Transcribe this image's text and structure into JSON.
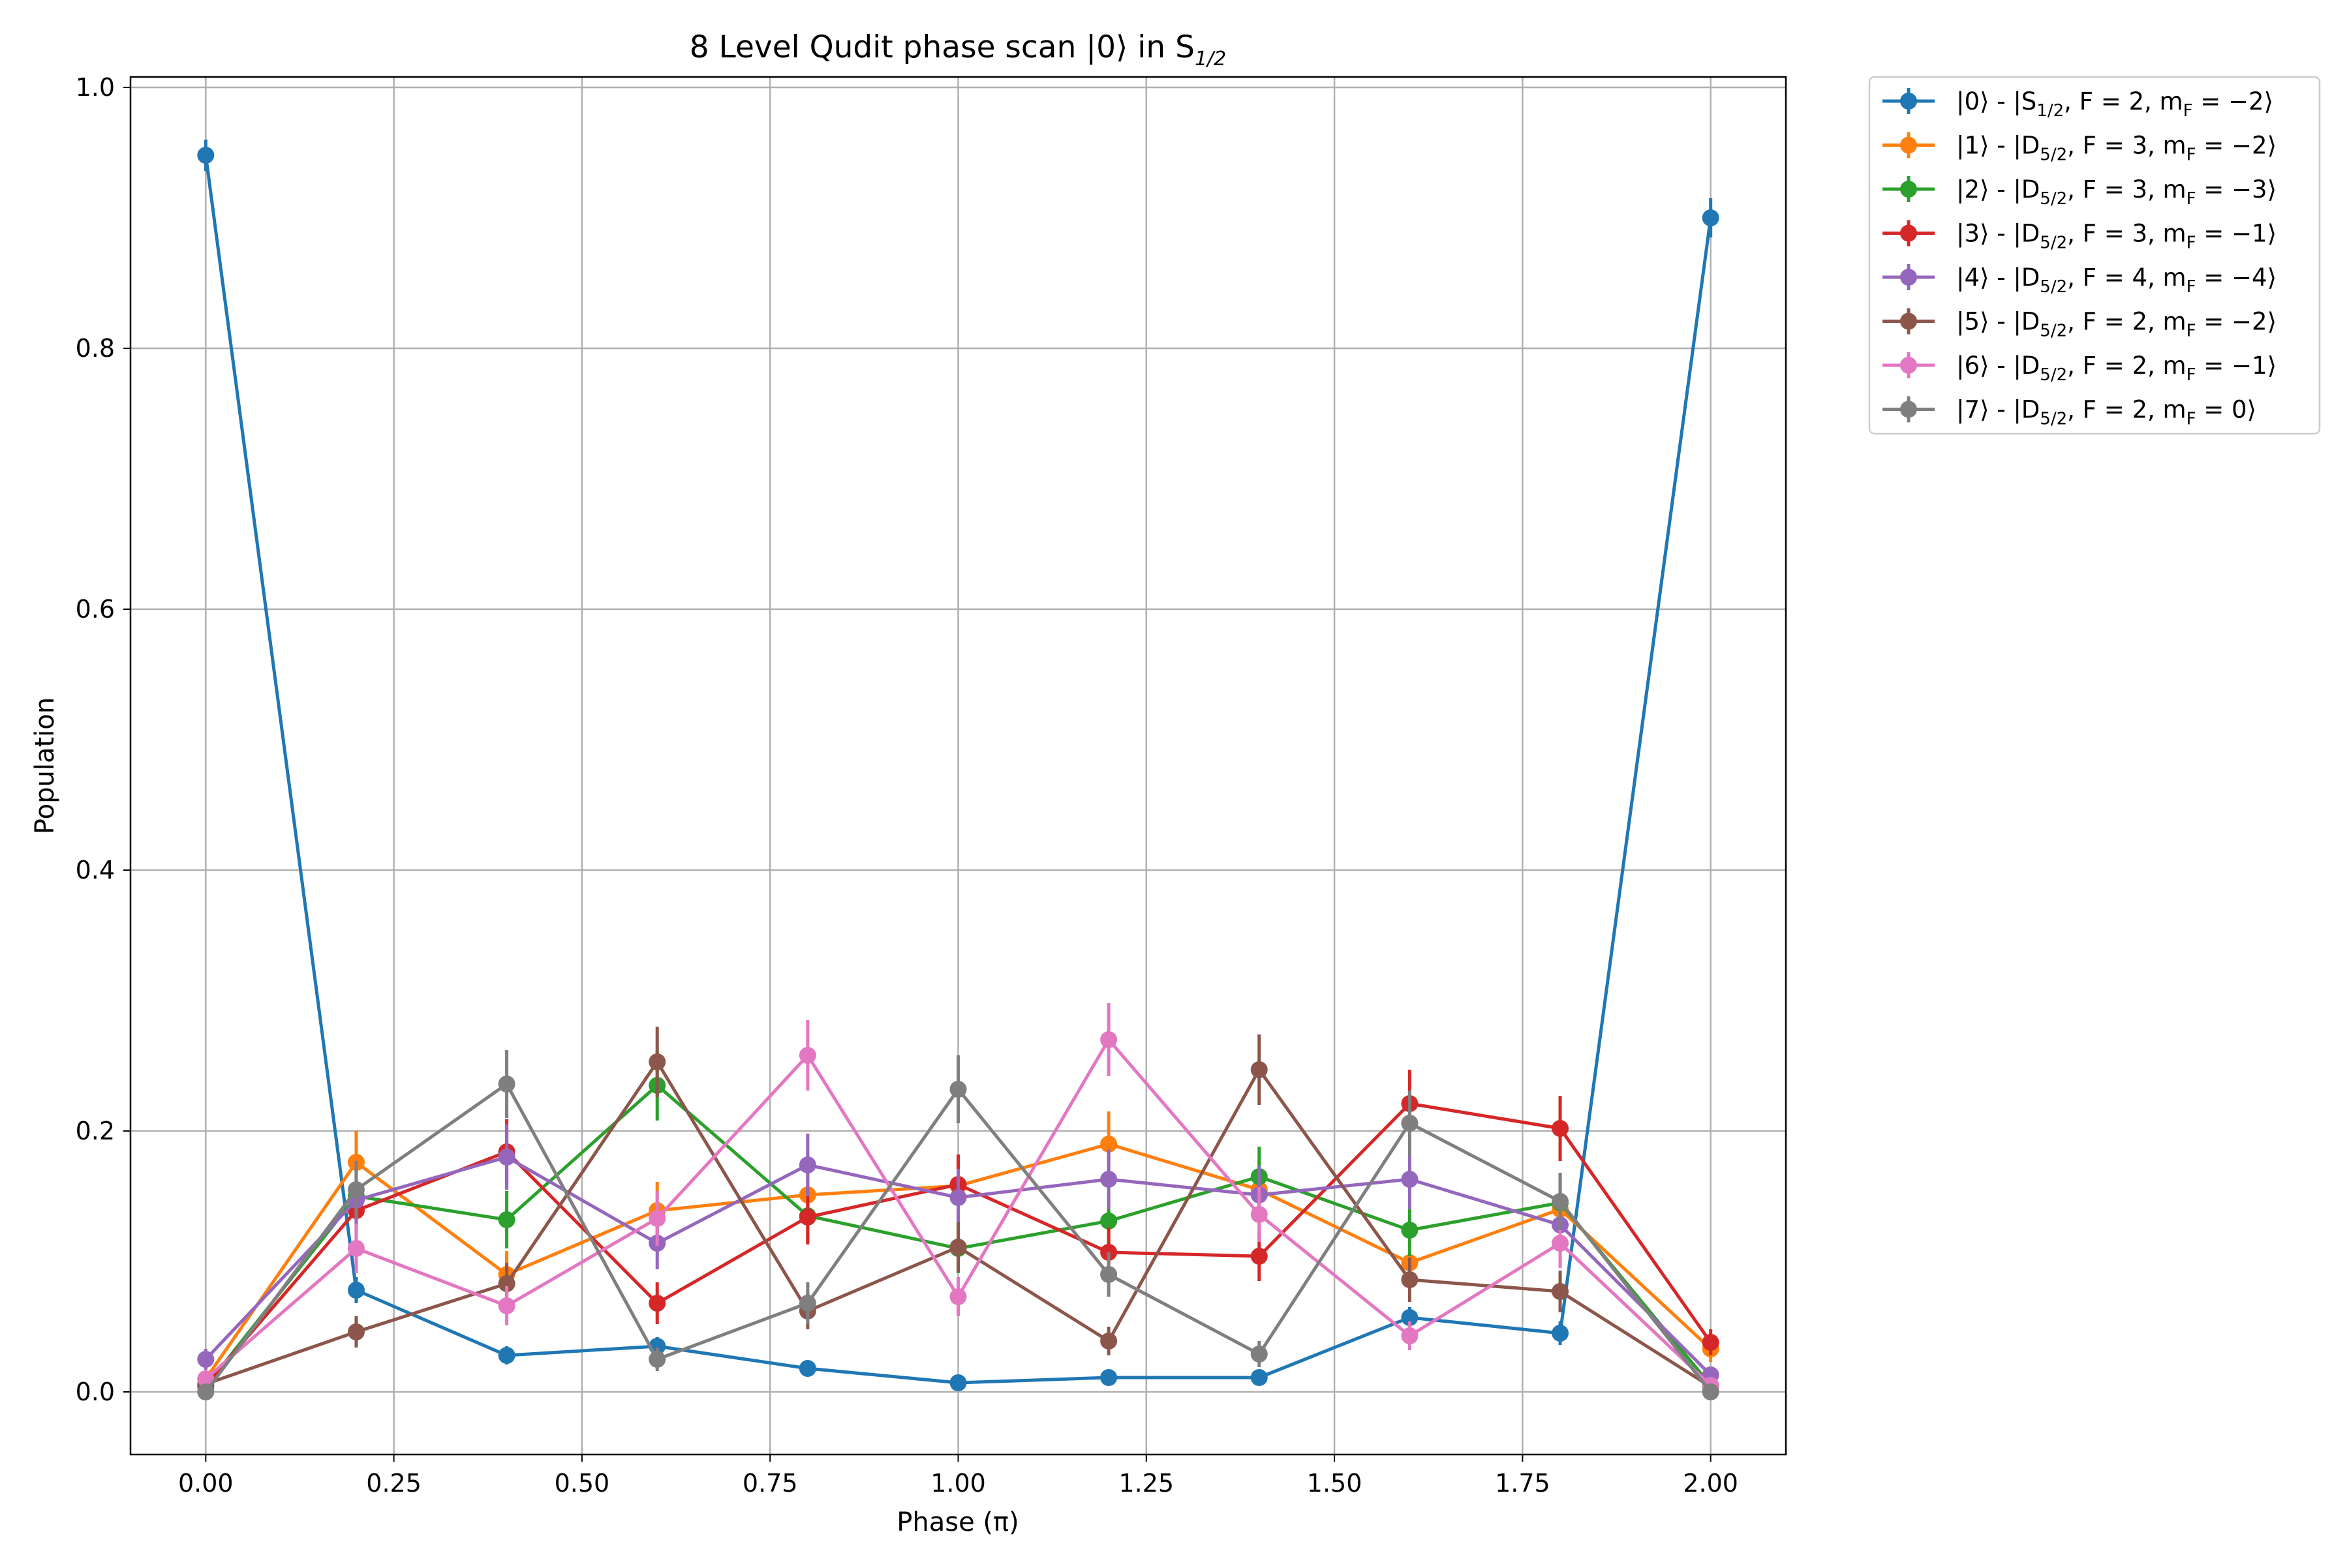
{
  "chart_data": {
    "type": "line",
    "title": "8 Level Qudit phase scan |0⟩ in S",
    "title_subscript": "1/2",
    "xlabel": "Phase (π)",
    "ylabel": "Population",
    "xlim": [
      -0.1,
      2.1
    ],
    "ylim": [
      -0.048,
      1.008
    ],
    "xticks": [
      0.0,
      0.25,
      0.5,
      0.75,
      1.0,
      1.25,
      1.5,
      1.75,
      2.0
    ],
    "xtick_labels": [
      "0.00",
      "0.25",
      "0.50",
      "0.75",
      "1.00",
      "1.25",
      "1.50",
      "1.75",
      "2.00"
    ],
    "yticks": [
      0.0,
      0.2,
      0.4,
      0.6,
      0.8,
      1.0
    ],
    "ytick_labels": [
      "0.0",
      "0.2",
      "0.4",
      "0.6",
      "0.8",
      "1.0"
    ],
    "grid": true,
    "legend_position": "outside top-right",
    "x": [
      0.0,
      0.2,
      0.4,
      0.6,
      0.8,
      1.0,
      1.2,
      1.4,
      1.6,
      1.8,
      2.0
    ],
    "series": [
      {
        "name": "|0⟩ - |S1/2, F = 2, mF = −2⟩",
        "label_parts": [
          "|0⟩ - |S",
          "1/2",
          ", F = 2, m",
          "F",
          " = −2⟩"
        ],
        "color": "#1f77b4",
        "values": [
          0.948,
          0.078,
          0.028,
          0.035,
          0.018,
          0.007,
          0.011,
          0.011,
          0.057,
          0.045,
          0.9
        ],
        "errors": [
          0.012,
          0.01,
          0.007,
          0.007,
          0.005,
          0.004,
          0.004,
          0.004,
          0.008,
          0.009,
          0.015
        ]
      },
      {
        "name": "|1⟩ - |D5/2, F = 3, mF = −2⟩",
        "label_parts": [
          "|1⟩ - |D",
          "5/2",
          ", F = 3, m",
          "F",
          " = −2⟩"
        ],
        "color": "#ff7f0e",
        "values": [
          0.01,
          0.176,
          0.09,
          0.139,
          0.151,
          0.158,
          0.19,
          0.155,
          0.099,
          0.14,
          0.033
        ],
        "errors": [
          0.005,
          0.024,
          0.018,
          0.022,
          0.022,
          0.022,
          0.025,
          0.022,
          0.018,
          0.022,
          0.01
        ]
      },
      {
        "name": "|2⟩ - |D5/2, F = 3, mF = −3⟩",
        "label_parts": [
          "|2⟩ - |D",
          "5/2",
          ", F = 3, m",
          "F",
          " = −3⟩"
        ],
        "color": "#2ca02c",
        "values": [
          0.004,
          0.15,
          0.132,
          0.235,
          0.135,
          0.11,
          0.131,
          0.165,
          0.124,
          0.145,
          0.005
        ],
        "errors": [
          0.003,
          0.022,
          0.022,
          0.027,
          0.021,
          0.019,
          0.021,
          0.023,
          0.02,
          0.022,
          0.004
        ]
      },
      {
        "name": "|3⟩ - |D5/2, F = 3, mF = −1⟩",
        "label_parts": [
          "|3⟩ - |D",
          "5/2",
          ", F = 3, m",
          "F",
          " = −1⟩"
        ],
        "color": "#d62728",
        "values": [
          0.005,
          0.139,
          0.184,
          0.068,
          0.134,
          0.159,
          0.107,
          0.104,
          0.221,
          0.202,
          0.038
        ],
        "errors": [
          0.003,
          0.022,
          0.025,
          0.016,
          0.021,
          0.023,
          0.019,
          0.019,
          0.026,
          0.025,
          0.01
        ]
      },
      {
        "name": "|4⟩ - |D5/2, F = 4, mF = −4⟩",
        "label_parts": [
          "|4⟩ - |D",
          "5/2",
          ", F = 4, m",
          "F",
          " = −4⟩"
        ],
        "color": "#9467bd",
        "values": [
          0.025,
          0.147,
          0.18,
          0.114,
          0.174,
          0.149,
          0.163,
          0.151,
          0.163,
          0.128,
          0.013
        ],
        "errors": [
          0.008,
          0.022,
          0.025,
          0.02,
          0.024,
          0.022,
          0.023,
          0.022,
          0.023,
          0.021,
          0.006
        ]
      },
      {
        "name": "|5⟩ - |D5/2, F = 2, mF = −2⟩",
        "label_parts": [
          "|5⟩ - |D",
          "5/2",
          ", F = 2, m",
          "F",
          " = −2⟩"
        ],
        "color": "#8c564b",
        "values": [
          0.006,
          0.046,
          0.083,
          0.253,
          0.062,
          0.111,
          0.039,
          0.247,
          0.086,
          0.077,
          0.004
        ],
        "errors": [
          0.004,
          0.012,
          0.016,
          0.027,
          0.014,
          0.019,
          0.011,
          0.027,
          0.017,
          0.016,
          0.003
        ]
      },
      {
        "name": "|6⟩ - |D5/2, F = 2, mF = −1⟩",
        "label_parts": [
          "|6⟩ - |D",
          "5/2",
          ", F = 2, m",
          "F",
          " = −1⟩"
        ],
        "color": "#e377c2",
        "values": [
          0.01,
          0.11,
          0.066,
          0.133,
          0.258,
          0.073,
          0.27,
          0.136,
          0.043,
          0.114,
          0.005
        ],
        "errors": [
          0.005,
          0.019,
          0.015,
          0.021,
          0.027,
          0.015,
          0.028,
          0.021,
          0.011,
          0.019,
          0.003
        ]
      },
      {
        "name": "|7⟩ - |D5/2, F = 2, mF = 0⟩",
        "label_parts": [
          "|7⟩ - |D",
          "5/2",
          ", F = 2, m",
          "F",
          " = 0⟩"
        ],
        "color": "#7f7f7f",
        "values": [
          0.0,
          0.155,
          0.236,
          0.025,
          0.068,
          0.232,
          0.09,
          0.029,
          0.206,
          0.146,
          0.0
        ],
        "errors": [
          0.002,
          0.022,
          0.026,
          0.009,
          0.016,
          0.026,
          0.017,
          0.01,
          0.025,
          0.022,
          0.002
        ]
      }
    ]
  }
}
